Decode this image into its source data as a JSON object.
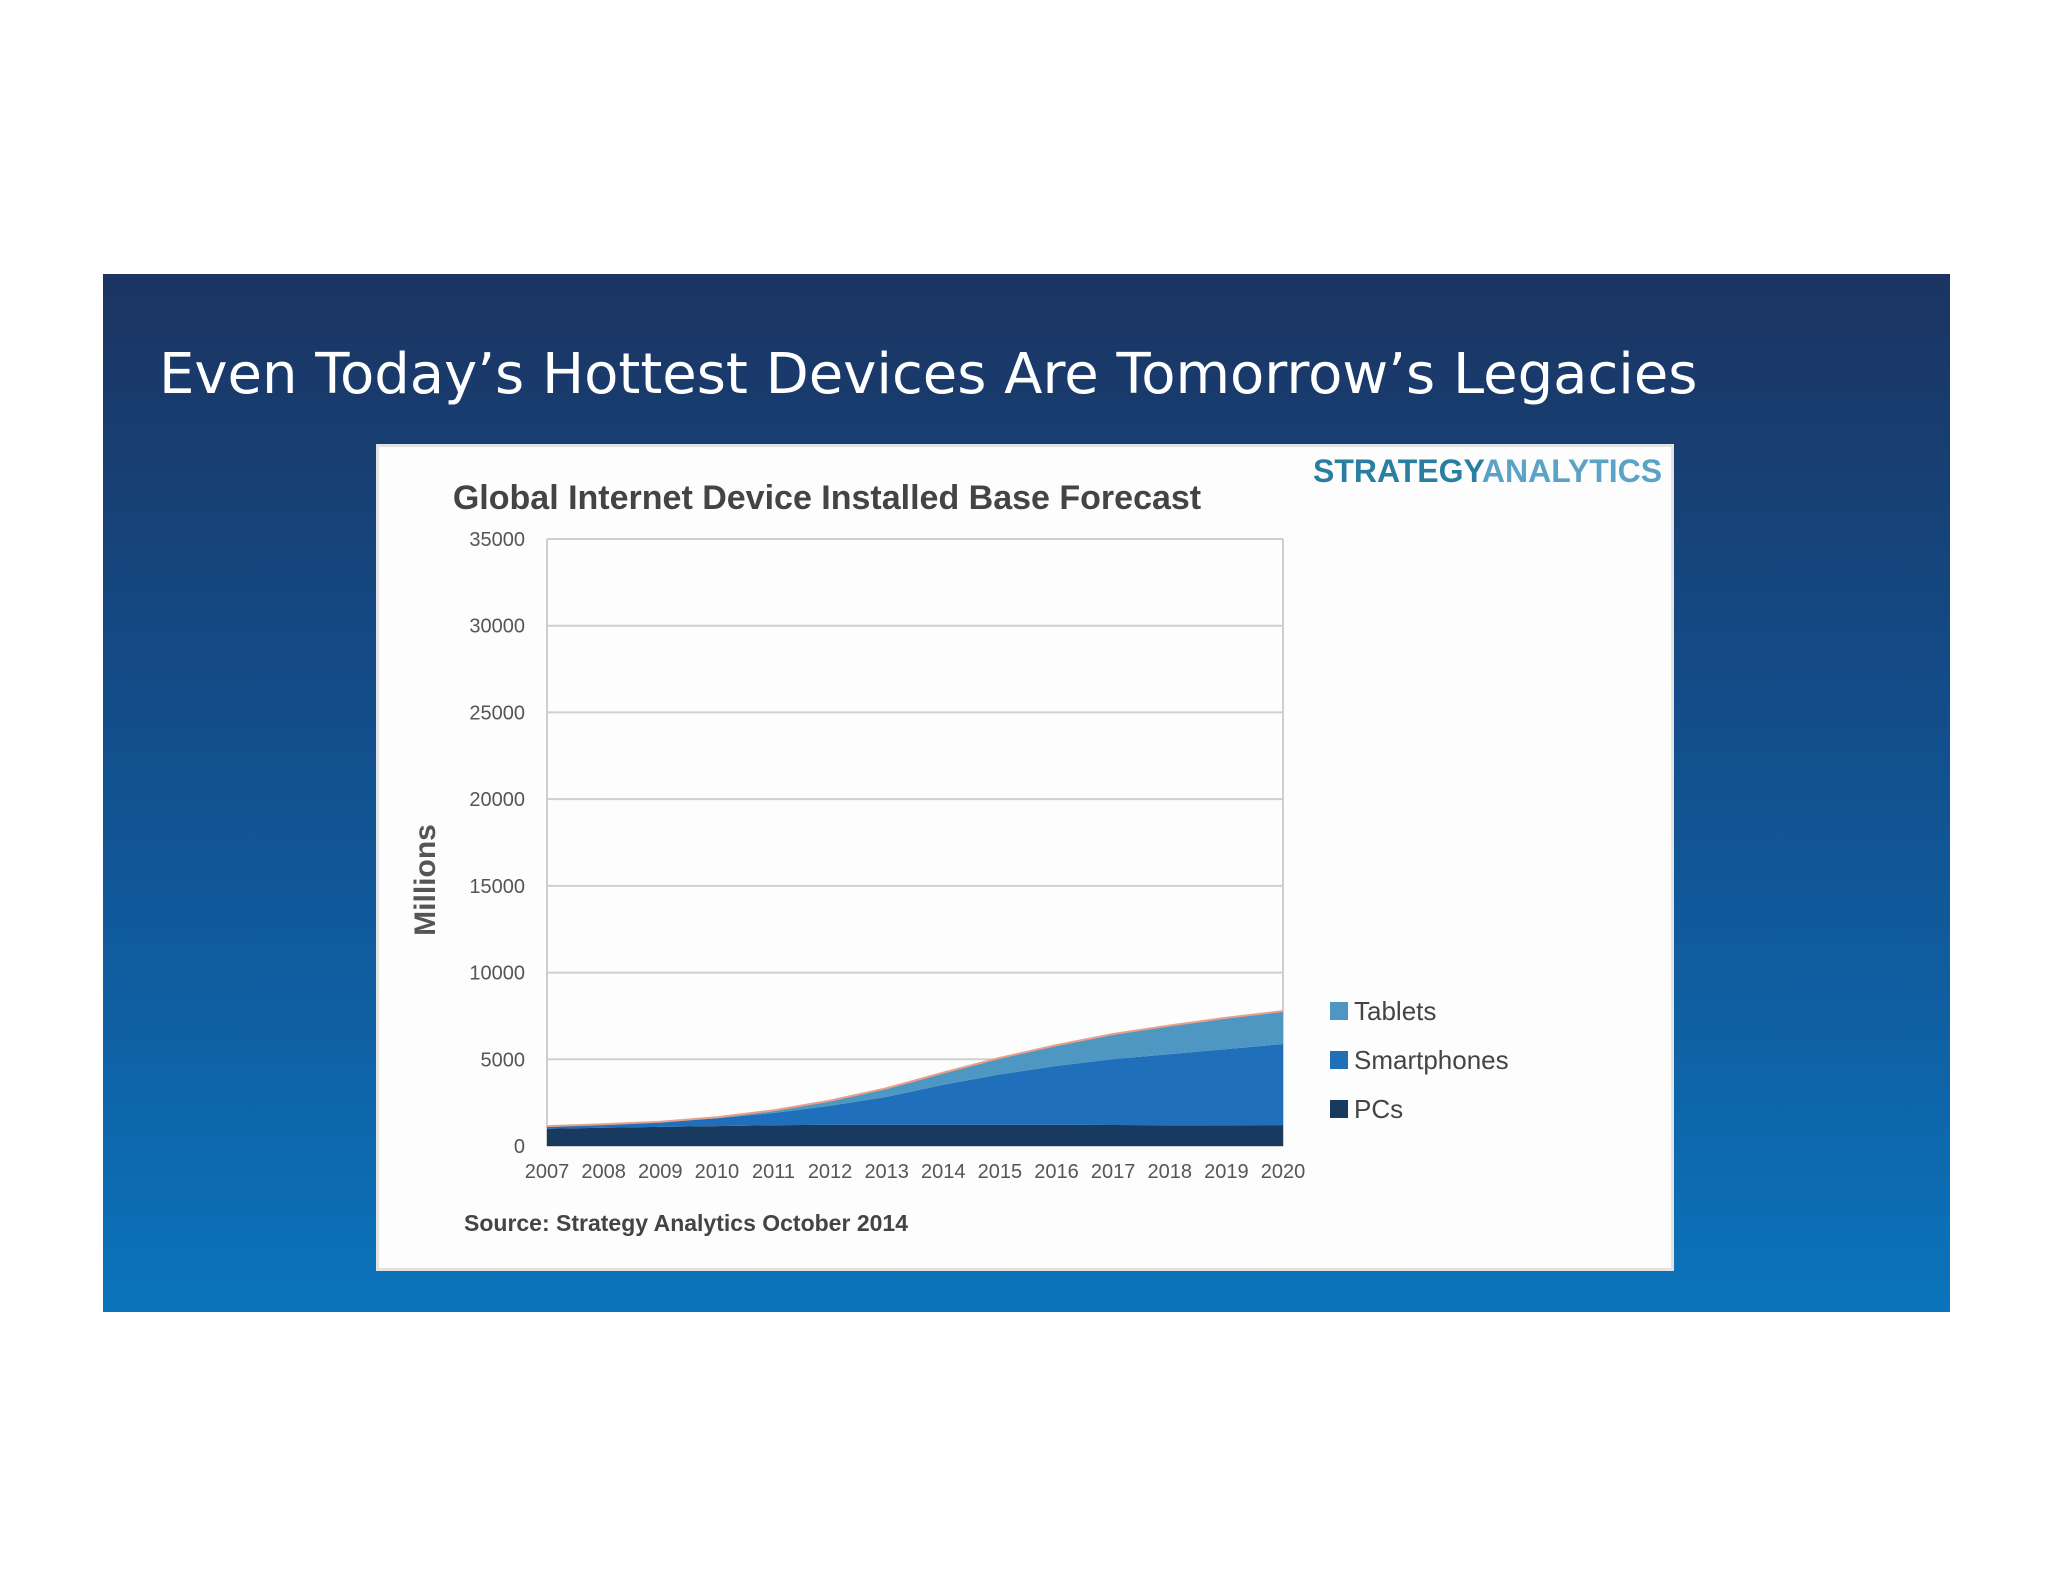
{
  "slide": {
    "title": "Even Today’s Hottest Devices Are Tomorrow’s Legacies"
  },
  "logo": {
    "part1": "STRATEGY",
    "part2": "ANALYTICS"
  },
  "source": "Source: Strategy Analytics October 2014",
  "colors": {
    "slide_top": "#1b3461",
    "slide_bottom": "#0b74bb",
    "tablets": "#4e97c2",
    "smartphones": "#1f6fba",
    "pcs": "#173a5e",
    "gridline": "#cfcfcf"
  },
  "chart_data": {
    "type": "area",
    "stacked": true,
    "title": "Global Internet Device Installed Base Forecast",
    "xlabel": "",
    "ylabel": "Millions",
    "ylim": [
      0,
      35000
    ],
    "yticks": [
      "0",
      "5000",
      "10000",
      "15000",
      "20000",
      "25000",
      "30000",
      "35000"
    ],
    "categories": [
      "2007",
      "2008",
      "2009",
      "2010",
      "2011",
      "2012",
      "2013",
      "2014",
      "2015",
      "2016",
      "2017",
      "2018",
      "2019",
      "2020"
    ],
    "series": [
      {
        "name": "PCs",
        "values": [
          1000,
          1050,
          1100,
          1150,
          1200,
          1220,
          1230,
          1230,
          1230,
          1220,
          1210,
          1200,
          1190,
          1180
        ]
      },
      {
        "name": "Smartphones",
        "values": [
          150,
          200,
          280,
          450,
          700,
          1100,
          1600,
          2300,
          2900,
          3400,
          3800,
          4100,
          4400,
          4700
        ]
      },
      {
        "name": "Tablets",
        "values": [
          0,
          0,
          20,
          60,
          150,
          300,
          500,
          700,
          950,
          1200,
          1450,
          1650,
          1800,
          1900
        ]
      }
    ],
    "legend": {
      "placement": "right",
      "order": [
        "Tablets",
        "Smartphones",
        "PCs"
      ]
    },
    "grid": true
  }
}
